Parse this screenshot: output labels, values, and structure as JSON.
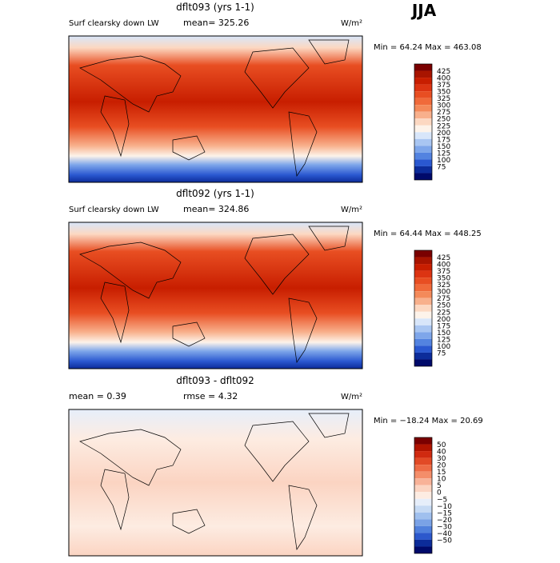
{
  "season": "JJA",
  "panels": [
    {
      "title": "dflt093 (yrs 1-1)",
      "variable": "Surf clearsky down LW",
      "stat1": "mean= 325.26",
      "units": "W/m²",
      "minmax": "Min =  64.24 Max = 463.08",
      "colors": [
        "#7a0000",
        "#a81400",
        "#c81e00",
        "#dc3412",
        "#e84e22",
        "#f06a3a",
        "#f48a5a",
        "#f8b08c",
        "#fcd8c2",
        "#fdf3ea",
        "#d8e6fa",
        "#a9c6f2",
        "#7ea6ea",
        "#5383e0",
        "#2a58d0",
        "#0c2c9a",
        "#000a6a"
      ],
      "labels": [
        "425",
        "400",
        "375",
        "350",
        "325",
        "300",
        "275",
        "250",
        "225",
        "200",
        "175",
        "150",
        "125",
        "100",
        "75"
      ]
    },
    {
      "title": "dflt092 (yrs 1-1)",
      "variable": "Surf clearsky down LW",
      "stat1": "mean= 324.86",
      "units": "W/m²",
      "minmax": "Min =  64.44 Max = 448.25",
      "colors": [
        "#7a0000",
        "#a81400",
        "#c81e00",
        "#dc3412",
        "#e84e22",
        "#f06a3a",
        "#f48a5a",
        "#f8b08c",
        "#fcd8c2",
        "#fdf3ea",
        "#d8e6fa",
        "#a9c6f2",
        "#7ea6ea",
        "#5383e0",
        "#2a58d0",
        "#0c2c9a",
        "#000a6a"
      ],
      "labels": [
        "425",
        "400",
        "375",
        "350",
        "325",
        "300",
        "275",
        "250",
        "225",
        "200",
        "175",
        "150",
        "125",
        "100",
        "75"
      ]
    },
    {
      "title": "dflt093 - dflt092",
      "stat1": "mean =   0.39",
      "stat2": "rmse =   4.32",
      "units": "W/m²",
      "minmax": "Min = −18.24 Max =  20.69",
      "colors": [
        "#7a0000",
        "#b01400",
        "#d02a10",
        "#e24a26",
        "#ee6c46",
        "#f48e6a",
        "#f8b298",
        "#fbd4c2",
        "#fdece2",
        "#e6eefa",
        "#c6daf4",
        "#a0c0ee",
        "#7aa2e6",
        "#5080dc",
        "#2c58cc",
        "#0c2c9a",
        "#000a6a"
      ],
      "labels": [
        "50",
        "40",
        "30",
        "20",
        "15",
        "10",
        "5",
        "0",
        "−5",
        "−10",
        "−15",
        "−20",
        "−30",
        "−40",
        "−50"
      ]
    }
  ]
}
